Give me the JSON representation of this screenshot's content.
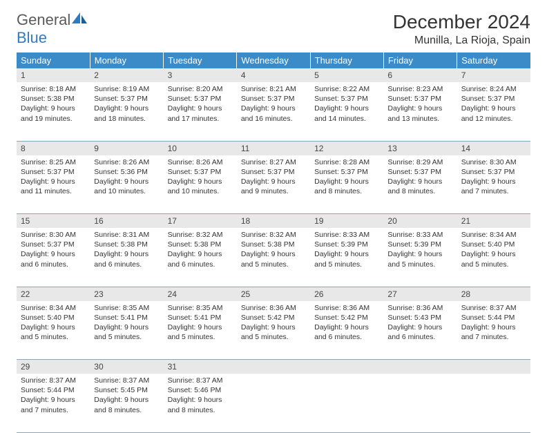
{
  "brand": {
    "part1": "General",
    "part2": "Blue"
  },
  "title": "December 2024",
  "location": "Munilla, La Rioja, Spain",
  "colors": {
    "header_bg": "#3b8bc8",
    "header_text": "#ffffff",
    "daynum_bg": "#e8e8e8",
    "border": "#8aa4b8",
    "logo_gray": "#5a5a5a",
    "logo_blue": "#2e7cc0",
    "text": "#333333"
  },
  "weekdays": [
    "Sunday",
    "Monday",
    "Tuesday",
    "Wednesday",
    "Thursday",
    "Friday",
    "Saturday"
  ],
  "weeks": [
    [
      {
        "num": "1",
        "sunrise": "8:18 AM",
        "sunset": "5:38 PM",
        "daylight": "9 hours and 19 minutes."
      },
      {
        "num": "2",
        "sunrise": "8:19 AM",
        "sunset": "5:37 PM",
        "daylight": "9 hours and 18 minutes."
      },
      {
        "num": "3",
        "sunrise": "8:20 AM",
        "sunset": "5:37 PM",
        "daylight": "9 hours and 17 minutes."
      },
      {
        "num": "4",
        "sunrise": "8:21 AM",
        "sunset": "5:37 PM",
        "daylight": "9 hours and 16 minutes."
      },
      {
        "num": "5",
        "sunrise": "8:22 AM",
        "sunset": "5:37 PM",
        "daylight": "9 hours and 14 minutes."
      },
      {
        "num": "6",
        "sunrise": "8:23 AM",
        "sunset": "5:37 PM",
        "daylight": "9 hours and 13 minutes."
      },
      {
        "num": "7",
        "sunrise": "8:24 AM",
        "sunset": "5:37 PM",
        "daylight": "9 hours and 12 minutes."
      }
    ],
    [
      {
        "num": "8",
        "sunrise": "8:25 AM",
        "sunset": "5:37 PM",
        "daylight": "9 hours and 11 minutes."
      },
      {
        "num": "9",
        "sunrise": "8:26 AM",
        "sunset": "5:36 PM",
        "daylight": "9 hours and 10 minutes."
      },
      {
        "num": "10",
        "sunrise": "8:26 AM",
        "sunset": "5:37 PM",
        "daylight": "9 hours and 10 minutes."
      },
      {
        "num": "11",
        "sunrise": "8:27 AM",
        "sunset": "5:37 PM",
        "daylight": "9 hours and 9 minutes."
      },
      {
        "num": "12",
        "sunrise": "8:28 AM",
        "sunset": "5:37 PM",
        "daylight": "9 hours and 8 minutes."
      },
      {
        "num": "13",
        "sunrise": "8:29 AM",
        "sunset": "5:37 PM",
        "daylight": "9 hours and 8 minutes."
      },
      {
        "num": "14",
        "sunrise": "8:30 AM",
        "sunset": "5:37 PM",
        "daylight": "9 hours and 7 minutes."
      }
    ],
    [
      {
        "num": "15",
        "sunrise": "8:30 AM",
        "sunset": "5:37 PM",
        "daylight": "9 hours and 6 minutes."
      },
      {
        "num": "16",
        "sunrise": "8:31 AM",
        "sunset": "5:38 PM",
        "daylight": "9 hours and 6 minutes."
      },
      {
        "num": "17",
        "sunrise": "8:32 AM",
        "sunset": "5:38 PM",
        "daylight": "9 hours and 6 minutes."
      },
      {
        "num": "18",
        "sunrise": "8:32 AM",
        "sunset": "5:38 PM",
        "daylight": "9 hours and 5 minutes."
      },
      {
        "num": "19",
        "sunrise": "8:33 AM",
        "sunset": "5:39 PM",
        "daylight": "9 hours and 5 minutes."
      },
      {
        "num": "20",
        "sunrise": "8:33 AM",
        "sunset": "5:39 PM",
        "daylight": "9 hours and 5 minutes."
      },
      {
        "num": "21",
        "sunrise": "8:34 AM",
        "sunset": "5:40 PM",
        "daylight": "9 hours and 5 minutes."
      }
    ],
    [
      {
        "num": "22",
        "sunrise": "8:34 AM",
        "sunset": "5:40 PM",
        "daylight": "9 hours and 5 minutes."
      },
      {
        "num": "23",
        "sunrise": "8:35 AM",
        "sunset": "5:41 PM",
        "daylight": "9 hours and 5 minutes."
      },
      {
        "num": "24",
        "sunrise": "8:35 AM",
        "sunset": "5:41 PM",
        "daylight": "9 hours and 5 minutes."
      },
      {
        "num": "25",
        "sunrise": "8:36 AM",
        "sunset": "5:42 PM",
        "daylight": "9 hours and 5 minutes."
      },
      {
        "num": "26",
        "sunrise": "8:36 AM",
        "sunset": "5:42 PM",
        "daylight": "9 hours and 6 minutes."
      },
      {
        "num": "27",
        "sunrise": "8:36 AM",
        "sunset": "5:43 PM",
        "daylight": "9 hours and 6 minutes."
      },
      {
        "num": "28",
        "sunrise": "8:37 AM",
        "sunset": "5:44 PM",
        "daylight": "9 hours and 7 minutes."
      }
    ],
    [
      {
        "num": "29",
        "sunrise": "8:37 AM",
        "sunset": "5:44 PM",
        "daylight": "9 hours and 7 minutes."
      },
      {
        "num": "30",
        "sunrise": "8:37 AM",
        "sunset": "5:45 PM",
        "daylight": "9 hours and 8 minutes."
      },
      {
        "num": "31",
        "sunrise": "8:37 AM",
        "sunset": "5:46 PM",
        "daylight": "9 hours and 8 minutes."
      },
      null,
      null,
      null,
      null
    ]
  ],
  "labels": {
    "sunrise": "Sunrise:",
    "sunset": "Sunset:",
    "daylight": "Daylight:"
  }
}
